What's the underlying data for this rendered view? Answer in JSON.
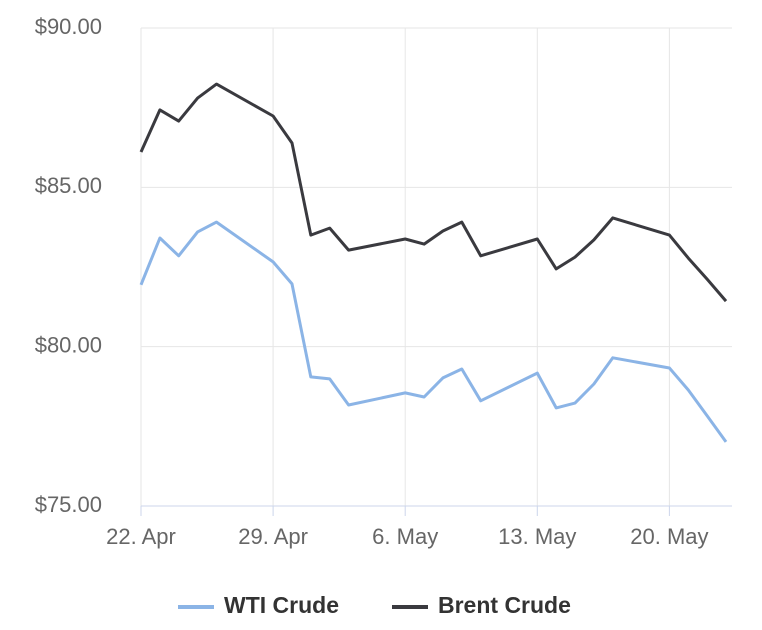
{
  "chart_data": {
    "type": "line",
    "x": [
      "22. Apr",
      "23. Apr",
      "24. Apr",
      "25. Apr",
      "26. Apr",
      "29. Apr",
      "30. Apr",
      "1. May",
      "2. May",
      "3. May",
      "6. May",
      "7. May",
      "8. May",
      "9. May",
      "10. May",
      "13. May",
      "14. May",
      "15. May",
      "16. May",
      "17. May",
      "20. May",
      "21. May",
      "22. May",
      "23. May"
    ],
    "series": [
      {
        "name": "WTI Crude",
        "color": "#8bb4e6",
        "values": [
          81.94,
          83.41,
          82.85,
          83.6,
          83.91,
          82.66,
          81.97,
          79.05,
          78.99,
          78.17,
          78.55,
          78.42,
          79.02,
          79.3,
          78.3,
          79.17,
          78.08,
          78.23,
          78.83,
          79.65,
          79.33,
          78.64,
          77.83,
          77.01
        ]
      },
      {
        "name": "Brent Crude",
        "color": "#3a3a3f",
        "values": [
          86.11,
          87.43,
          87.08,
          87.8,
          88.24,
          87.24,
          86.39,
          83.5,
          83.72,
          83.03,
          83.38,
          83.22,
          83.63,
          83.91,
          82.85,
          83.38,
          82.44,
          82.81,
          83.35,
          84.04,
          83.5,
          82.78,
          82.12,
          81.43
        ]
      }
    ],
    "xlim": [
      "22. Apr",
      "23. May"
    ],
    "xticks": [
      "22. Apr",
      "29. Apr",
      "6. May",
      "13. May",
      "20. May"
    ],
    "ylim": [
      75,
      90
    ],
    "yticks": [
      {
        "value": 75,
        "label": "$75.00"
      },
      {
        "value": 80,
        "label": "$80.00"
      },
      {
        "value": 85,
        "label": "$85.00"
      },
      {
        "value": 90,
        "label": "$90.00"
      }
    ],
    "grid": true,
    "legend": "bottom"
  }
}
